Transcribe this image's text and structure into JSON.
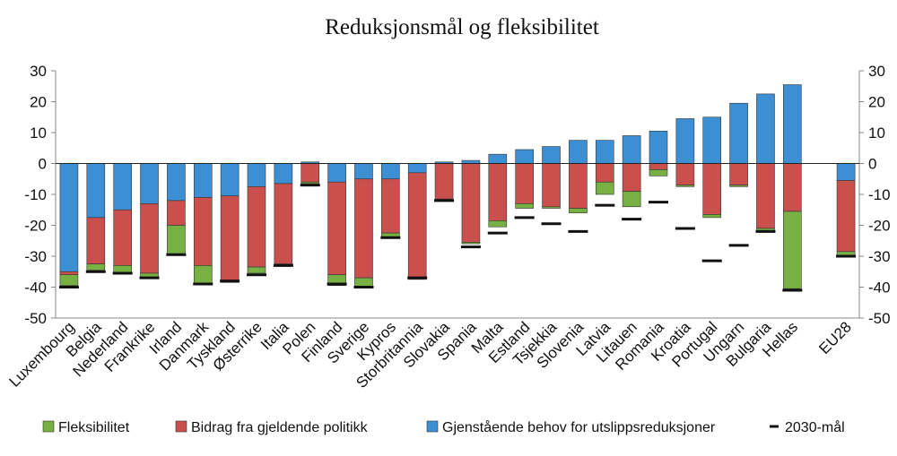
{
  "chart_data": {
    "type": "bar",
    "stacked": true,
    "title": "Reduksjonsmål og fleksibilitet",
    "xlabel": "",
    "ylabel": "",
    "ylim": [
      -50,
      30
    ],
    "yticks": [
      30,
      20,
      10,
      0,
      -10,
      -20,
      -30,
      -40,
      -50
    ],
    "ytick_labels": [
      "30",
      "20",
      "10",
      "0",
      "-10",
      "-20",
      "-30",
      "-40",
      "-50"
    ],
    "grid": false,
    "legend_position": "bottom",
    "colors": {
      "fleksibilitet": "#77b043",
      "bidrag": "#c9504d",
      "gjenstaende": "#3d8fd4",
      "maal": "#111111",
      "axis": "#888888"
    },
    "categories": [
      "Luxembourg",
      "Belgia",
      "Nederland",
      "Frankrike",
      "Irland",
      "Danmark",
      "Tyskland",
      "Østerrike",
      "Italia",
      "Polen",
      "Finland",
      "Sverige",
      "Kypros",
      "Storbritannia",
      "Slovakia",
      "Spania",
      "Malta",
      "Estland",
      "Tsjekkia",
      "Slovenia",
      "Latvia",
      "Litauen",
      "Romania",
      "Kroatia",
      "Portugal",
      "Ungarn",
      "Bulgaria",
      "Hellas",
      "EU28"
    ],
    "series": [
      {
        "name": "Gjenstående behov for utslippsreduksjoner",
        "key": "gjenstaende",
        "values": [
          -35,
          -17.5,
          -15,
          -13,
          -12,
          -11,
          -10.5,
          -7.5,
          -6.5,
          0.5,
          -6,
          -5,
          -5,
          -3,
          0.5,
          1,
          3,
          4.5,
          5.5,
          7.5,
          7.5,
          9,
          10.5,
          14.5,
          15,
          19.5,
          22.5,
          25.5,
          -5.5
        ]
      },
      {
        "name": "Bidrag fra gjeldende politikk",
        "key": "bidrag",
        "values": [
          -1,
          -15,
          -18,
          -22.5,
          -8,
          -22,
          -27.5,
          -26,
          -26,
          -6,
          -30,
          -32,
          -17.5,
          -34,
          -11.5,
          -25.5,
          -18.5,
          -13,
          -14,
          -14.5,
          -6,
          -9,
          -2,
          -7,
          -16.5,
          -7,
          -21,
          -15.5,
          -23
        ]
      },
      {
        "name": "Fleksibilitet",
        "key": "fleksibilitet",
        "values": [
          -3.5,
          -2,
          -2.5,
          -1.5,
          -9.5,
          -6,
          -0.5,
          -2,
          -0.5,
          -0.5,
          -3.5,
          -3,
          -1.5,
          -0.5,
          -0.5,
          -0.5,
          -2,
          -1.5,
          -0.5,
          -1.5,
          -4,
          -5,
          -2,
          -0.5,
          -1,
          -0.5,
          -1,
          -25,
          -1.5
        ]
      }
    ],
    "target_2030": [
      -40,
      -35,
      -35.5,
      -37,
      -29.5,
      -39,
      -38,
      -36,
      -33,
      -7,
      -39,
      -40,
      -24,
      -37,
      -12,
      -27,
      -22.5,
      -17.5,
      -19.5,
      -22,
      -13.5,
      -18,
      -12.5,
      -21,
      -31.5,
      -26.5,
      -22,
      -41,
      -30
    ],
    "legend": [
      {
        "label": "Fleksibilitet",
        "key": "fleksibilitet"
      },
      {
        "label": "Bidrag fra gjeldende politikk",
        "key": "bidrag"
      },
      {
        "label": "Gjenstående behov for utslippsreduksjoner",
        "key": "gjenstaende"
      },
      {
        "label": "2030-mål",
        "key": "maal"
      }
    ]
  }
}
